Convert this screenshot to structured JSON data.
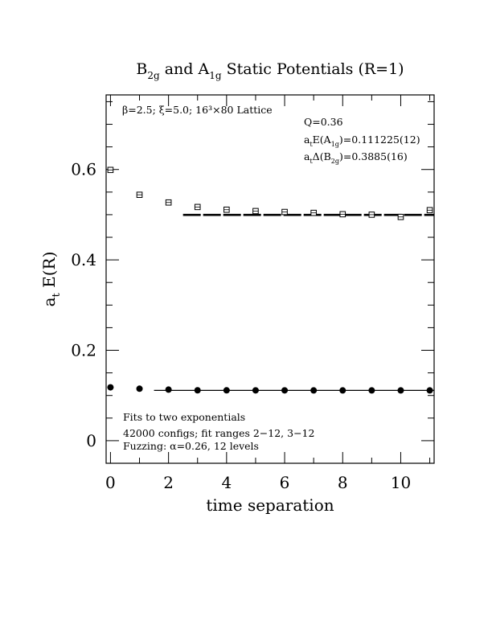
{
  "chart_data": {
    "type": "scatter",
    "title": "Static Potentials (R=1)",
    "title_parts": {
      "sym1_base": "B",
      "sym1_sub": "2g",
      "connector": " and ",
      "sym2_base": "A",
      "sym2_sub": "1g",
      "rest": " Static Potentials (R=1)"
    },
    "xlabel": "time separation",
    "ylabel_base": "a",
    "ylabel_sub": "t",
    "ylabel_rest": " E(R)",
    "xlim": [
      -0.15,
      11.15
    ],
    "ylim": [
      -0.05,
      0.765
    ],
    "x_ticks": [
      "0",
      "2",
      "4",
      "6",
      "8",
      "10"
    ],
    "y_ticks": [
      "0",
      "0.2",
      "0.4",
      "0.6"
    ],
    "grid": false,
    "annotations": {
      "lattice": "β=2.5; ξ=5.0; 16³×80 Lattice",
      "q": "Q=0.36",
      "a1g_fit": "atE(A1g)=0.111225(12)",
      "b2g_fit": "atΔ(B2g)=0.3885(16)",
      "fits_line1": "Fits to two exponentials",
      "fits_line2": "42000 configs; fit ranges 2−12, 3−12",
      "fits_line3": "Fuzzing: α=0.26, 12 levels"
    },
    "series": [
      {
        "name": "B2g",
        "marker": "open-square",
        "x": [
          0,
          1,
          2,
          3,
          4,
          5,
          6,
          7,
          8,
          9,
          10,
          11
        ],
        "y": [
          0.599,
          0.544,
          0.527,
          0.517,
          0.511,
          0.508,
          0.506,
          0.504,
          0.501,
          0.5,
          0.495,
          0.51
        ],
        "fit_line": {
          "style": "dashed-thick",
          "x": [
            2.5,
            11.15
          ],
          "y": 0.4995
        }
      },
      {
        "name": "A1g",
        "marker": "filled-circle",
        "x": [
          0,
          1,
          2,
          3,
          4,
          5,
          6,
          7,
          8,
          9,
          10,
          11
        ],
        "y": [
          0.118,
          0.115,
          0.113,
          0.1115,
          0.1114,
          0.1113,
          0.1113,
          0.1112,
          0.1112,
          0.1112,
          0.1112,
          0.1112
        ],
        "fit_line": {
          "style": "solid",
          "x": [
            1.5,
            11.15
          ],
          "y": 0.111225
        }
      }
    ]
  }
}
